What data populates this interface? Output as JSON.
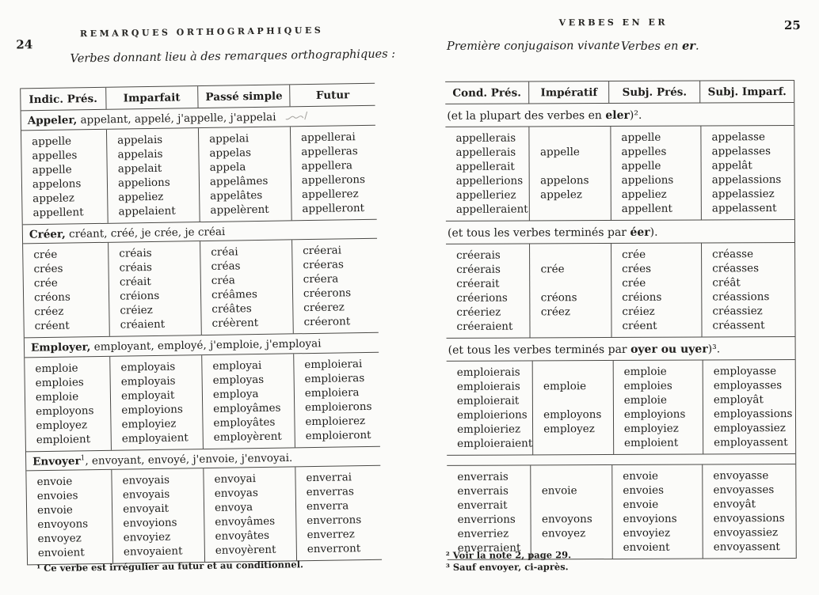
{
  "left_page": {
    "page_number": "24",
    "running_head": "REMARQUES ORTHOGRAPHIQUES",
    "subtitle": "Verbes donnant lieu à des remarques orthographiques :",
    "table": {
      "headers": [
        "Indic. Prés.",
        "Imparfait",
        "Passé simple",
        "Futur"
      ],
      "sections": [
        {
          "title_bold": "Appeler,",
          "title_sup": "",
          "title_rest": " appelant, appelé, j'appelle, j'appelai",
          "annotation": "pencil-scribble",
          "columns": [
            [
              "appelle",
              "appelles",
              "appelle",
              "appelons",
              "appelez",
              "appellent"
            ],
            [
              "appelais",
              "appelais",
              "appelait",
              "appelions",
              "appeliez",
              "appelaient"
            ],
            [
              "appelai",
              "appelas",
              "appela",
              "appelâmes",
              "appelâtes",
              "appelèrent"
            ],
            [
              "appellerai",
              "appelleras",
              "appellera",
              "appellerons",
              "appellerez",
              "appelleront"
            ]
          ]
        },
        {
          "title_bold": "Créer,",
          "title_sup": "",
          "title_rest": " créant, créé, je crée, je créai",
          "annotation": "",
          "columns": [
            [
              "crée",
              "crées",
              "crée",
              "créons",
              "créez",
              "créent"
            ],
            [
              "créais",
              "créais",
              "créait",
              "créions",
              "créiez",
              "créaient"
            ],
            [
              "créai",
              "créas",
              "créa",
              "créâmes",
              "créâtes",
              "créèrent"
            ],
            [
              "créerai",
              "créeras",
              "créera",
              "créerons",
              "créerez",
              "créeront"
            ]
          ]
        },
        {
          "title_bold": "Employer,",
          "title_sup": "",
          "title_rest": " employant, employé, j'emploie, j'employai",
          "annotation": "",
          "columns": [
            [
              "emploie",
              "emploies",
              "emploie",
              "employons",
              "employez",
              "emploient"
            ],
            [
              "employais",
              "employais",
              "employait",
              "employions",
              "employiez",
              "employaient"
            ],
            [
              "employai",
              "employas",
              "employa",
              "employâmes",
              "employâtes",
              "employèrent"
            ],
            [
              "emploierai",
              "emploieras",
              "emploiera",
              "emploierons",
              "emploierez",
              "emploieront"
            ]
          ]
        },
        {
          "title_bold": "Envoyer",
          "title_sup": "1",
          "title_rest": ", envoyant, envoyé, j'envoie, j'envoyai.",
          "annotation": "",
          "columns": [
            [
              "envoie",
              "envoies",
              "envoie",
              "envoyons",
              "envoyez",
              "envoient"
            ],
            [
              "envoyais",
              "envoyais",
              "envoyait",
              "envoyions",
              "envoyiez",
              "envoyaient"
            ],
            [
              "envoyai",
              "envoyas",
              "envoya",
              "envoyâmes",
              "envoyâtes",
              "envoyèrent"
            ],
            [
              "enverrai",
              "enverras",
              "enverra",
              "enverrons",
              "enverrez",
              "enverront"
            ]
          ]
        }
      ]
    },
    "footnote": "¹ Ce verbe est irrégulier au futur et au conditionnel."
  },
  "right_page": {
    "page_number": "25",
    "running_head": "VERBES EN ER",
    "subtitle_left": "Première conjugaison vivante",
    "subtitle_right_pre": "Verbes en ",
    "subtitle_right_bold": "er",
    "subtitle_right_post": ".",
    "table": {
      "headers": [
        "Cond. Prés.",
        "Impératif",
        "Subj. Prés.",
        "Subj. Imparf."
      ],
      "sections": [
        {
          "note_pre": "(et la plupart des verbes en ",
          "note_bold": "eler",
          "note_post": ")².",
          "columns": [
            [
              "appellerais",
              "appellerais",
              "appellerait",
              "appellerions",
              "appelleriez",
              "appelleraient"
            ],
            [
              "",
              "appelle",
              "",
              "appelons",
              "appelez",
              ""
            ],
            [
              "appelle",
              "appelles",
              "appelle",
              "appelions",
              "appeliez",
              "appellent"
            ],
            [
              "appelasse",
              "appelasses",
              "appelât",
              "appelassions",
              "appelassiez",
              "appelassent"
            ]
          ]
        },
        {
          "note_pre": "(et tous les verbes terminés par ",
          "note_bold": "éer",
          "note_post": ").",
          "columns": [
            [
              "créerais",
              "créerais",
              "créerait",
              "créerions",
              "créeriez",
              "créeraient"
            ],
            [
              "",
              "crée",
              "",
              "créons",
              "créez",
              ""
            ],
            [
              "crée",
              "crées",
              "crée",
              "créions",
              "créiez",
              "créent"
            ],
            [
              "créasse",
              "créasses",
              "créât",
              "créassions",
              "créassiez",
              "créassent"
            ]
          ]
        },
        {
          "note_pre": "(et tous les verbes terminés par ",
          "note_bold": "oyer ou uyer",
          "note_post": ")³.",
          "columns": [
            [
              "emploierais",
              "emploierais",
              "emploierait",
              "emploierions",
              "emploieriez",
              "emploieraient"
            ],
            [
              "",
              "emploie",
              "",
              "employons",
              "employez",
              ""
            ],
            [
              "emploie",
              "emploies",
              "emploie",
              "employions",
              "employiez",
              "emploient"
            ],
            [
              "employasse",
              "employasses",
              "employât",
              "employassions",
              "employassiez",
              "employassent"
            ]
          ]
        },
        {
          "note_pre": "",
          "note_bold": "",
          "note_post": "",
          "columns": [
            [
              "enverrais",
              "enverrais",
              "enverrait",
              "enverrions",
              "enverriez",
              "enverraient"
            ],
            [
              "",
              "envoie",
              "",
              "envoyons",
              "envoyez",
              ""
            ],
            [
              "envoie",
              "envoies",
              "envoie",
              "envoyions",
              "envoyiez",
              "envoient"
            ],
            [
              "envoyasse",
              "envoyasses",
              "envoyât",
              "envoyassions",
              "envoyassiez",
              "envoyassent"
            ]
          ]
        }
      ]
    },
    "footnotes": [
      "² Voir la note 2, page 29.",
      "³ Sauf envoyer, ci-après."
    ]
  }
}
